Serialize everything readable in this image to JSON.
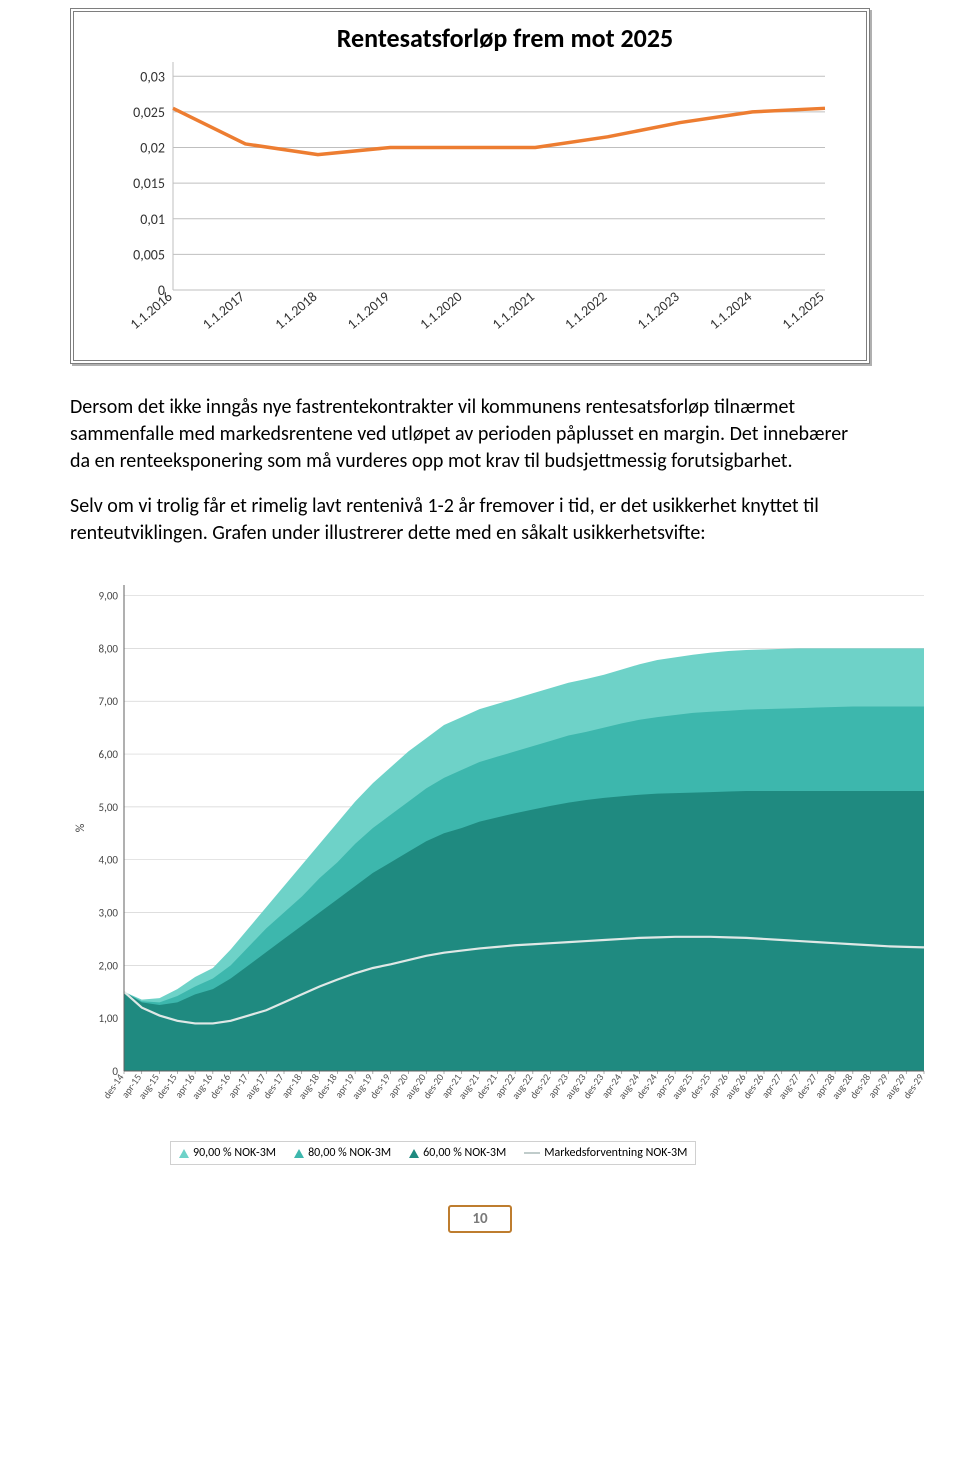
{
  "chart1": {
    "type": "line",
    "title": "Rentesatsforløp frem mot 2025",
    "x_labels": [
      "1.1.2016",
      "1.1.2017",
      "1.1.2018",
      "1.1.2019",
      "1.1.2020",
      "1.1.2021",
      "1.1.2022",
      "1.1.2023",
      "1.1.2024",
      "1.1.2025"
    ],
    "y_ticks": [
      0,
      0.005,
      0.01,
      0.015,
      0.02,
      0.025,
      0.03
    ],
    "y_tick_labels": [
      "0",
      "0,005",
      "0,01",
      "0,015",
      "0,02",
      "0,025",
      "0,03"
    ],
    "ylim": [
      0,
      0.032
    ],
    "values": [
      0.0255,
      0.0205,
      0.019,
      0.02,
      0.02,
      0.02,
      0.0215,
      0.0235,
      0.025,
      0.0255
    ],
    "line_color": "#ed7d31",
    "line_width": 3.5,
    "grid_color": "#bfbfbf",
    "plot_border_color": "#bfbfbf",
    "tick_font_size": 14,
    "title_font_size": 26,
    "background_color": "#ffffff"
  },
  "body_text": {
    "p1": "Dersom det ikke inngås nye fastrentekontrakter vil kommunens rentesatsforløp tilnærmet sammenfalle med markedsrentene ved utløpet av perioden påplusset en margin. Det innebærer da en renteeksponering som må vurderes opp mot krav til budsjettmessig forutsigbarhet.",
    "p2": "Selv om vi trolig får et rimelig lavt rentenivå 1-2 år fremover i tid, er det usikkerhet knyttet til renteutviklingen. Grafen under illustrerer dette med en såkalt usikkerhetsvifte:"
  },
  "chart2": {
    "type": "area",
    "y_ticks": [
      0,
      1,
      2,
      3,
      4,
      5,
      6,
      7,
      8,
      9
    ],
    "y_tick_labels": [
      "0",
      "1,00",
      "2,00",
      "3,00",
      "4,00",
      "5,00",
      "6,00",
      "7,00",
      "8,00",
      "9,00"
    ],
    "ylim": [
      0,
      9.2
    ],
    "ylabel": "%",
    "x_labels": [
      "des-14",
      "apr-15",
      "aug-15",
      "des-15",
      "apr-16",
      "aug-16",
      "des-16",
      "apr-17",
      "aug-17",
      "des-17",
      "apr-18",
      "aug-18",
      "des-18",
      "apr-19",
      "aug-19",
      "des-19",
      "apr-20",
      "aug-20",
      "des-20",
      "apr-21",
      "aug-21",
      "des-21",
      "apr-22",
      "aug-22",
      "des-22",
      "apr-23",
      "aug-23",
      "des-23",
      "apr-24",
      "aug-24",
      "des-24",
      "apr-25",
      "aug-25",
      "des-25",
      "apr-26",
      "aug-26",
      "des-26",
      "apr-27",
      "aug-27",
      "des-27",
      "apr-28",
      "aug-28",
      "des-28",
      "apr-29",
      "aug-29",
      "des-29"
    ],
    "areas": {
      "band90_upper": [
        1.5,
        1.35,
        1.38,
        1.55,
        1.78,
        1.95,
        2.3,
        2.7,
        3.1,
        3.5,
        3.9,
        4.3,
        4.7,
        5.1,
        5.45,
        5.75,
        6.05,
        6.3,
        6.55,
        6.7,
        6.85,
        6.95,
        7.05,
        7.15,
        7.25,
        7.35,
        7.42,
        7.5,
        7.6,
        7.7,
        7.78,
        7.83,
        7.88,
        7.92,
        7.95,
        7.97,
        7.98,
        7.99,
        8.0,
        8.0,
        8.0,
        8.0,
        8.0,
        8.0,
        8.0,
        8.0
      ],
      "band80_upper": [
        1.5,
        1.32,
        1.3,
        1.42,
        1.6,
        1.75,
        2.0,
        2.35,
        2.7,
        3.0,
        3.3,
        3.65,
        3.95,
        4.3,
        4.6,
        4.85,
        5.1,
        5.35,
        5.55,
        5.7,
        5.85,
        5.95,
        6.05,
        6.15,
        6.25,
        6.35,
        6.42,
        6.5,
        6.58,
        6.65,
        6.7,
        6.74,
        6.78,
        6.8,
        6.82,
        6.84,
        6.85,
        6.86,
        6.87,
        6.88,
        6.89,
        6.9,
        6.9,
        6.9,
        6.9,
        6.9
      ],
      "band60_upper": [
        1.5,
        1.3,
        1.25,
        1.3,
        1.45,
        1.55,
        1.75,
        2.0,
        2.25,
        2.5,
        2.75,
        3.0,
        3.25,
        3.5,
        3.75,
        3.95,
        4.15,
        4.35,
        4.5,
        4.6,
        4.72,
        4.8,
        4.88,
        4.95,
        5.02,
        5.08,
        5.13,
        5.17,
        5.2,
        5.23,
        5.25,
        5.26,
        5.27,
        5.28,
        5.29,
        5.3,
        5.3,
        5.3,
        5.3,
        5.3,
        5.3,
        5.3,
        5.3,
        5.3,
        5.3,
        5.3
      ],
      "line_forecast": [
        1.5,
        1.2,
        1.05,
        0.95,
        0.9,
        0.9,
        0.95,
        1.05,
        1.15,
        1.3,
        1.45,
        1.6,
        1.73,
        1.85,
        1.95,
        2.02,
        2.1,
        2.18,
        2.24,
        2.28,
        2.32,
        2.35,
        2.38,
        2.4,
        2.42,
        2.44,
        2.46,
        2.48,
        2.5,
        2.52,
        2.53,
        2.54,
        2.54,
        2.54,
        2.53,
        2.52,
        2.5,
        2.48,
        2.46,
        2.44,
        2.42,
        2.4,
        2.38,
        2.36,
        2.35,
        2.34
      ]
    },
    "colors": {
      "band90": "#6ed2c8",
      "band80": "#3db7ad",
      "band60": "#1f8a80",
      "line": "#dfe8e6",
      "grid": "#d3d3d3",
      "axis": "#606060"
    },
    "legend": [
      {
        "marker": "triangle",
        "color": "#6ed2c8",
        "label": "90,00 % NOK-3M"
      },
      {
        "marker": "triangle",
        "color": "#3db7ad",
        "label": "80,00 % NOK-3M"
      },
      {
        "marker": "triangle",
        "color": "#1f8a80",
        "label": "60,00 % NOK-3M"
      },
      {
        "marker": "line",
        "color": "#c0cccb",
        "label": "Markedsforventning NOK-3M"
      }
    ],
    "tick_font_size": 10
  },
  "page_number": "10",
  "page_number_border": "#be7d2f"
}
